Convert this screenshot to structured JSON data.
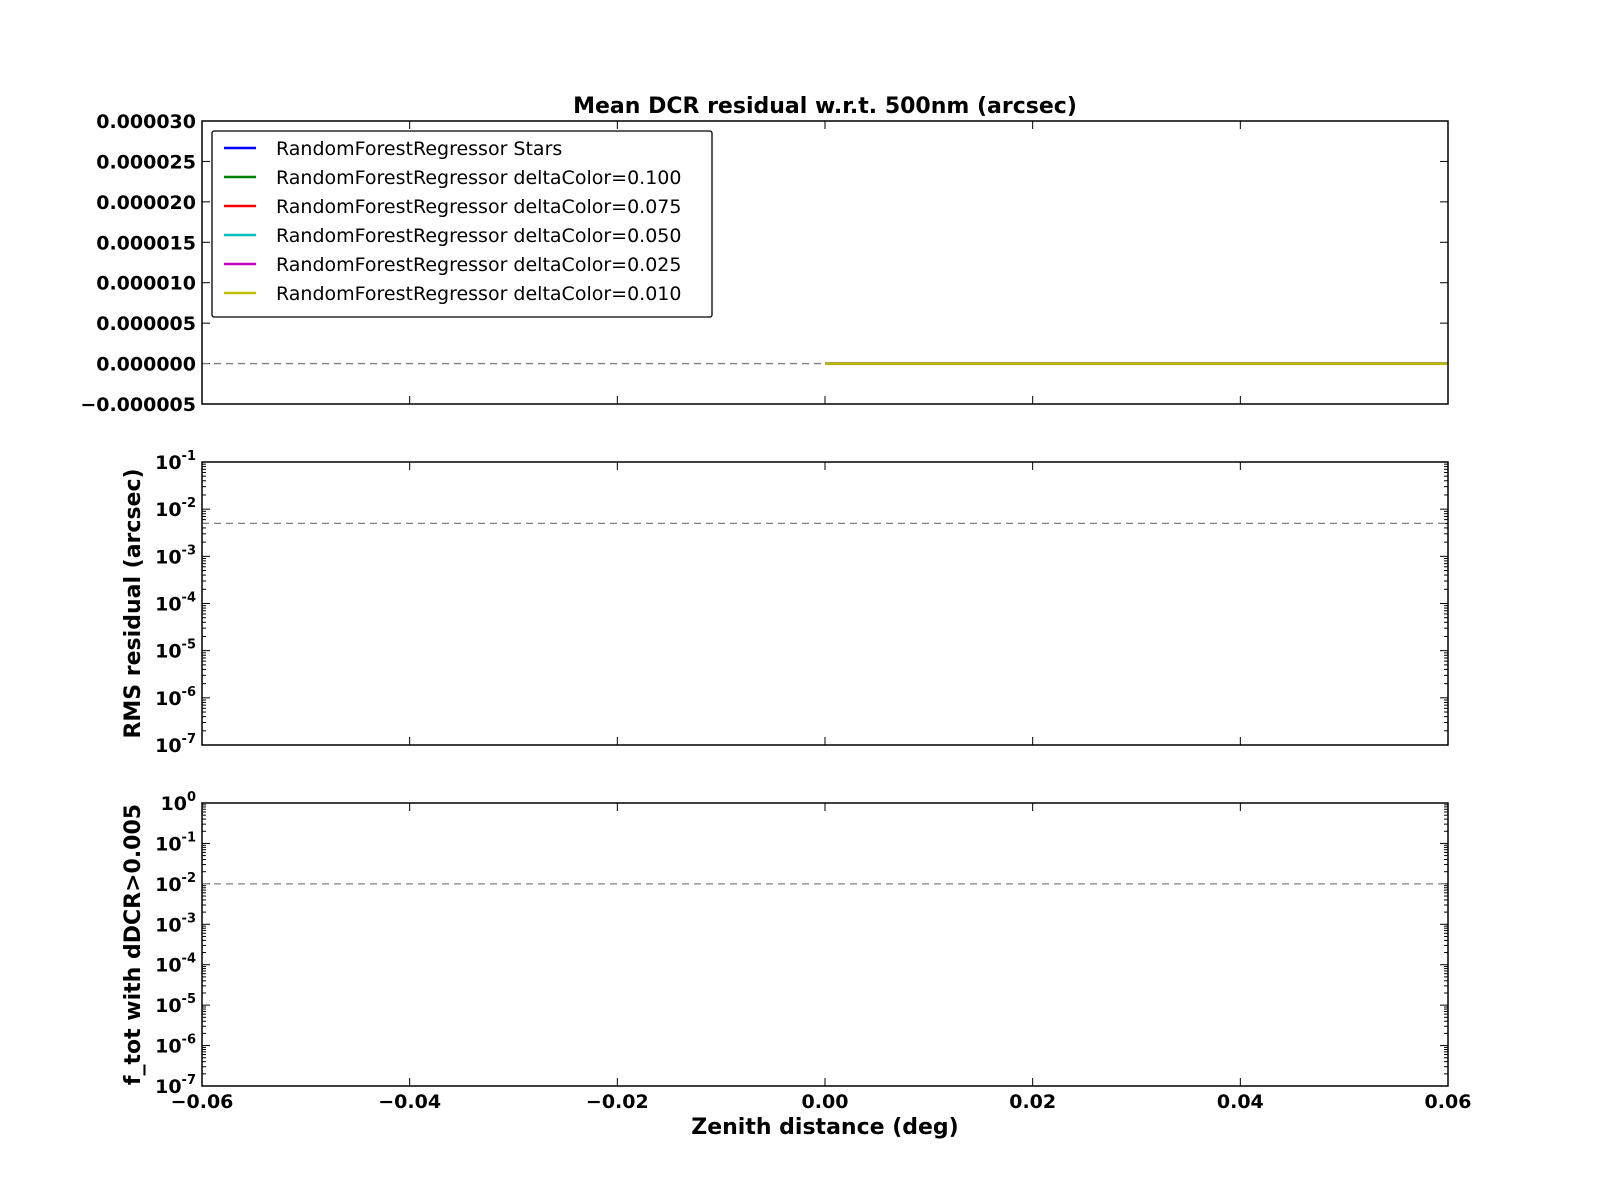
{
  "chart_data": [
    {
      "type": "line",
      "panel": "mean",
      "title": "Mean DCR residual w.r.t. 500nm (arcsec)",
      "ylabel": "",
      "xlim": [
        -0.06,
        0.06
      ],
      "ylim": [
        -5e-06,
        3e-05
      ],
      "yscale": "linear",
      "y_ticks": [
        "−0.000005",
        "0.000000",
        "0.000005",
        "0.000010",
        "0.000015",
        "0.000020",
        "0.000025",
        "0.000030"
      ],
      "reference_line": 0,
      "legend": {
        "placement": "upper-left"
      },
      "series": [
        {
          "name": "RandomForestRegressor Stars",
          "color": "#0000ff",
          "x": [
            0.0,
            0.06
          ],
          "y": [
            0.0,
            0.0
          ]
        },
        {
          "name": "RandomForestRegressor deltaColor=0.100",
          "color": "#008000",
          "x": [
            0.0,
            0.06
          ],
          "y": [
            0.0,
            0.0
          ]
        },
        {
          "name": "RandomForestRegressor deltaColor=0.075",
          "color": "#ff0000",
          "x": [
            0.0,
            0.06
          ],
          "y": [
            0.0,
            0.0
          ]
        },
        {
          "name": "RandomForestRegressor deltaColor=0.050",
          "color": "#00bfbf",
          "x": [
            0.0,
            0.06
          ],
          "y": [
            0.0,
            0.0
          ]
        },
        {
          "name": "RandomForestRegressor deltaColor=0.025",
          "color": "#bf00bf",
          "x": [
            0.0,
            0.06
          ],
          "y": [
            0.0,
            0.0
          ]
        },
        {
          "name": "RandomForestRegressor deltaColor=0.010",
          "color": "#bfbf00",
          "x": [
            0.0,
            0.06
          ],
          "y": [
            0.0,
            0.0
          ]
        }
      ]
    },
    {
      "type": "line",
      "panel": "rms",
      "title": "",
      "ylabel": "RMS residual (arcsec)",
      "xlim": [
        -0.06,
        0.06
      ],
      "ylim": [
        1e-07,
        0.1
      ],
      "yscale": "log",
      "y_ticks": [
        {
          "base": "10",
          "exp": "-7"
        },
        {
          "base": "10",
          "exp": "-6"
        },
        {
          "base": "10",
          "exp": "-5"
        },
        {
          "base": "10",
          "exp": "-4"
        },
        {
          "base": "10",
          "exp": "-3"
        },
        {
          "base": "10",
          "exp": "-2"
        },
        {
          "base": "10",
          "exp": "-1"
        }
      ],
      "reference_line": 0.005,
      "series": []
    },
    {
      "type": "line",
      "panel": "fraction",
      "title": "",
      "ylabel": "f_tot with dDCR>0.005",
      "xlabel": "Zenith distance (deg)",
      "xlim": [
        -0.06,
        0.06
      ],
      "ylim": [
        1e-07,
        1
      ],
      "yscale": "log",
      "x_ticks": [
        "−0.06",
        "−0.04",
        "−0.02",
        "0.00",
        "0.02",
        "0.04",
        "0.06"
      ],
      "y_ticks": [
        {
          "base": "10",
          "exp": "-7"
        },
        {
          "base": "10",
          "exp": "-6"
        },
        {
          "base": "10",
          "exp": "-5"
        },
        {
          "base": "10",
          "exp": "-4"
        },
        {
          "base": "10",
          "exp": "-3"
        },
        {
          "base": "10",
          "exp": "-2"
        },
        {
          "base": "10",
          "exp": "-1"
        },
        {
          "base": "10",
          "exp": "0"
        }
      ],
      "reference_line": 0.01,
      "series": []
    }
  ]
}
